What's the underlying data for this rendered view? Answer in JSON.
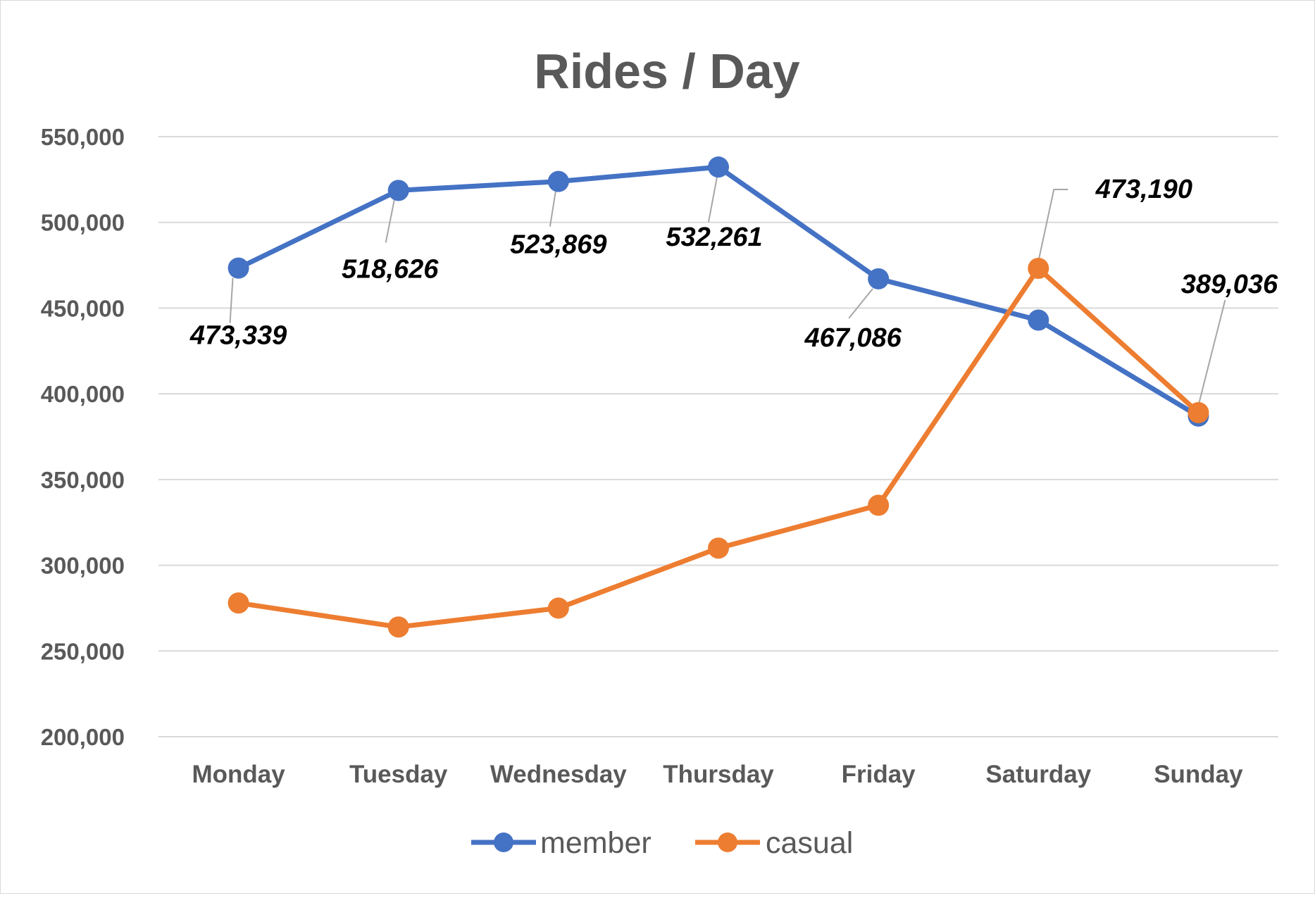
{
  "chart_data": {
    "type": "line",
    "title": "Rides / Day",
    "xlabel": "",
    "ylabel": "",
    "categories": [
      "Monday",
      "Tuesday",
      "Wednesday",
      "Thursday",
      "Friday",
      "Saturday",
      "Sunday"
    ],
    "ylim": [
      200000,
      550000
    ],
    "yticks": [
      200000,
      250000,
      300000,
      350000,
      400000,
      450000,
      500000,
      550000
    ],
    "ytick_labels": [
      "200,000",
      "250,000",
      "300,000",
      "350,000",
      "400,000",
      "450,000",
      "500,000",
      "550,000"
    ],
    "grid": true,
    "legend_position": "bottom",
    "series": [
      {
        "name": "member",
        "color": "#4472c4",
        "values": [
          473339,
          518626,
          523869,
          532261,
          467086,
          443000,
          387000
        ],
        "data_labels": [
          "473,339",
          "518,626",
          "523,869",
          "532,261",
          "467,086",
          null,
          null
        ]
      },
      {
        "name": "casual",
        "color": "#ed7d31",
        "values": [
          278000,
          264000,
          275000,
          310000,
          335000,
          473190,
          389036
        ],
        "data_labels": [
          null,
          null,
          null,
          null,
          null,
          "473,190",
          "389,036"
        ]
      }
    ]
  }
}
